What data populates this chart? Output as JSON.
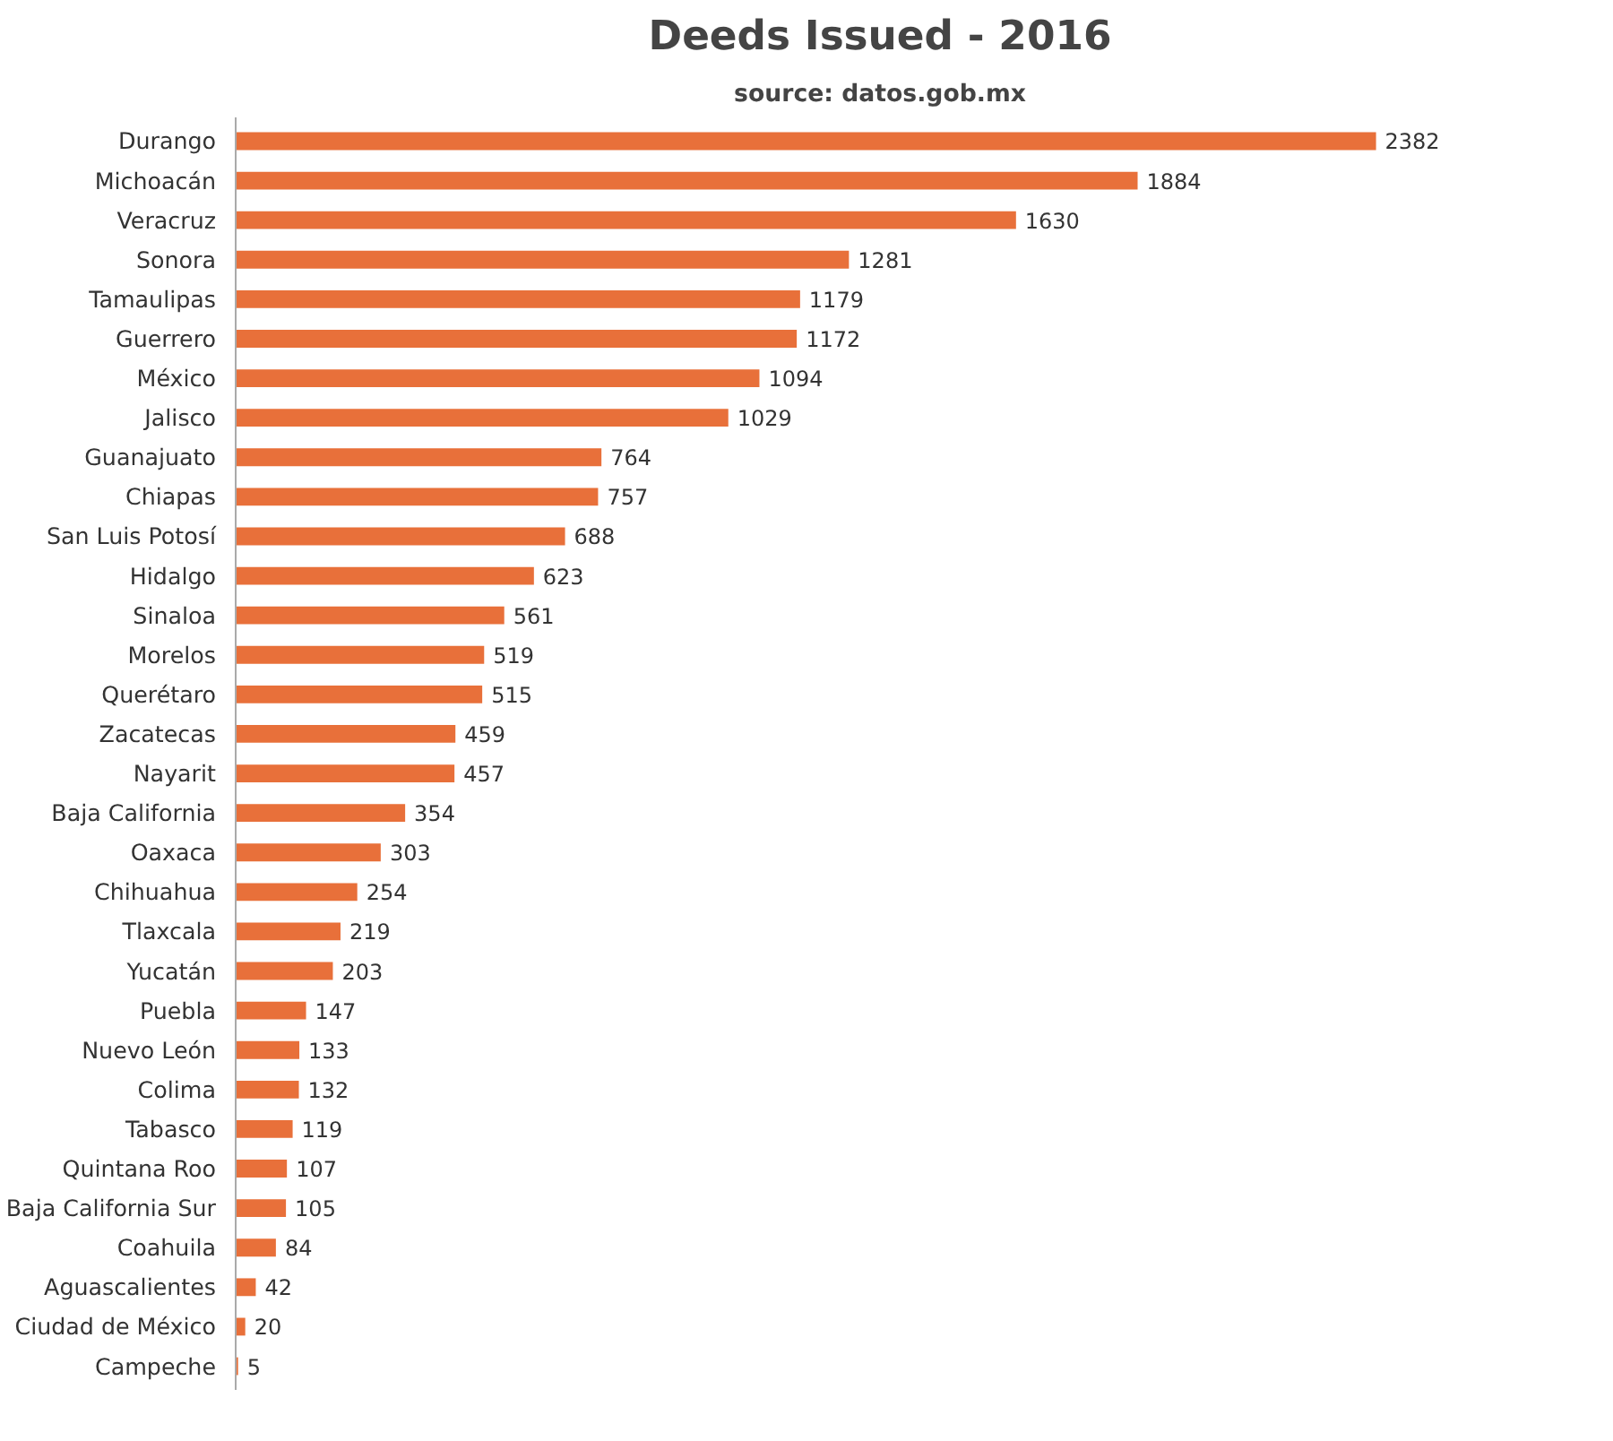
{
  "chart_data": {
    "type": "bar",
    "orientation": "horizontal",
    "title": "Deeds Issued - 2016",
    "subtitle": "source: datos.gob.mx",
    "tick_labels": "y",
    "data_labels": true,
    "grid": false,
    "color": "#e8703a",
    "categories": [
      "Durango",
      "Michoacán",
      "Veracruz",
      "Sonora",
      "Tamaulipas",
      "Guerrero",
      "México",
      "Jalisco",
      "Guanajuato",
      "Chiapas",
      "San Luis Potosí",
      "Hidalgo",
      "Sinaloa",
      "Morelos",
      "Querétaro",
      "Zacatecas",
      "Nayarit",
      "Baja California",
      "Oaxaca",
      "Chihuahua",
      "Tlaxcala",
      "Yucatán",
      "Puebla",
      "Nuevo León",
      "Colima",
      "Tabasco",
      "Quintana Roo",
      "Baja California Sur",
      "Coahuila",
      "Aguascalientes",
      "Ciudad de México",
      "Campeche"
    ],
    "values": [
      2382,
      1884,
      1630,
      1281,
      1179,
      1172,
      1094,
      1029,
      764,
      757,
      688,
      623,
      561,
      519,
      515,
      459,
      457,
      354,
      303,
      254,
      219,
      203,
      147,
      133,
      132,
      119,
      107,
      105,
      84,
      42,
      20,
      5
    ]
  }
}
